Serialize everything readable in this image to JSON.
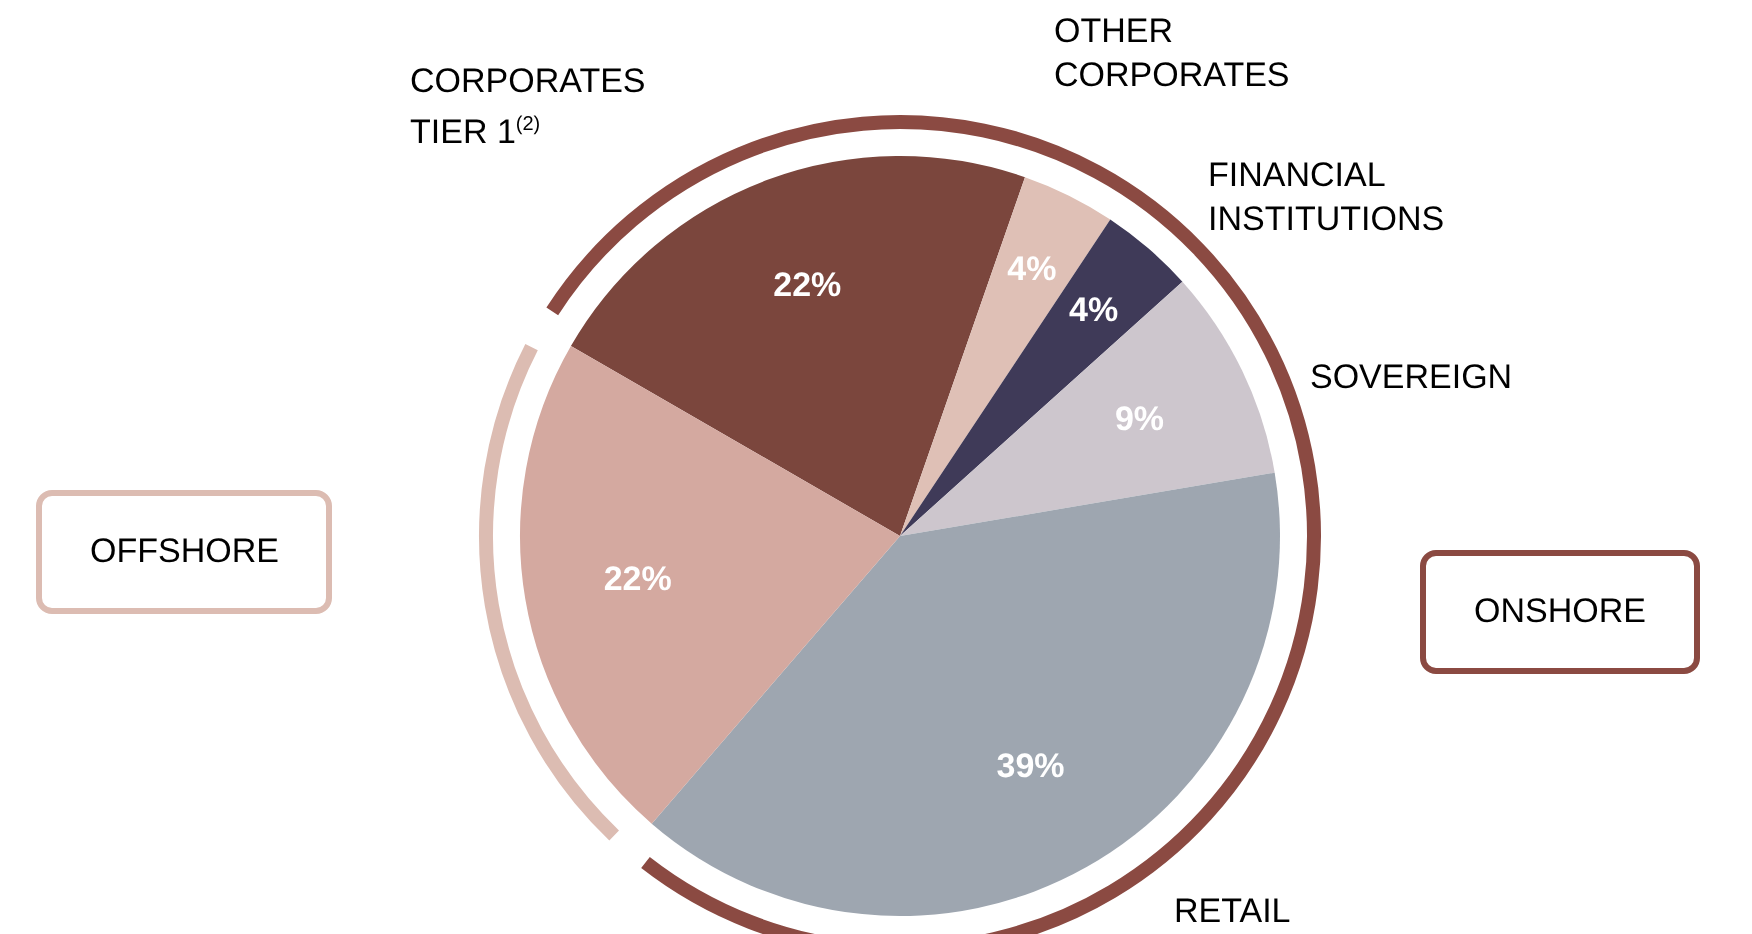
{
  "chart_data": {
    "type": "pie",
    "categories": [
      "CORPORATES TIER 1$^{(2)}$",
      "OTHER CORPORATES",
      "FINANCIAL INSTITUTIONS",
      "SOVEREIGN",
      "RETAIL",
      null
    ],
    "values": [
      22,
      4,
      4,
      9,
      39,
      22
    ],
    "colors": [
      "#7b463d",
      "#dfc0b6",
      "#3f3a58",
      "#cdc6cd",
      "#9ea6b0",
      "#d4a9a0"
    ],
    "value_labels": [
      "22%",
      "4%",
      "4%",
      "9%",
      "39%",
      "22%"
    ],
    "legend": false,
    "annotations": [
      "OFFSHORE",
      "ONSHORE"
    ]
  }
}
